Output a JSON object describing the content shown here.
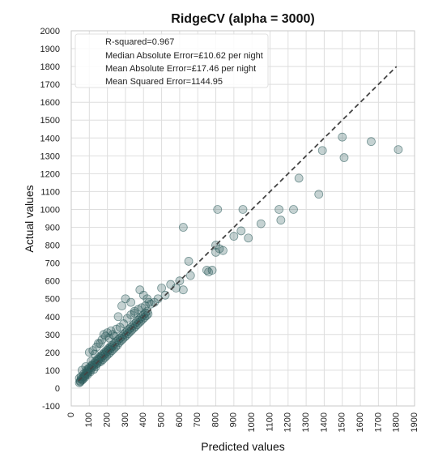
{
  "chart_data": {
    "type": "scatter",
    "title": "RidgeCV (alpha = 3000)",
    "xlabel": "Predicted values",
    "ylabel": "Actual values",
    "xlim": [
      0,
      1900
    ],
    "ylim": [
      -100,
      2000
    ],
    "xticks": [
      0,
      100,
      200,
      300,
      400,
      500,
      600,
      700,
      800,
      900,
      1000,
      1100,
      1200,
      1300,
      1400,
      1500,
      1600,
      1700,
      1800,
      1900
    ],
    "yticks": [
      -100,
      0,
      100,
      200,
      300,
      400,
      500,
      600,
      700,
      800,
      900,
      1000,
      1100,
      1200,
      1300,
      1400,
      1500,
      1600,
      1700,
      1800,
      1900,
      2000
    ],
    "grid": true,
    "annotation_placement": "top-left",
    "annotations": [
      "R-squared=0.967",
      "Median Absolute Error=£10.62 per night",
      "Mean Absolute Error=£17.46 per night",
      "Mean Squared Error=1144.95"
    ],
    "reference_line": {
      "style": "dashed",
      "from": [
        40,
        40
      ],
      "to": [
        1800,
        1800
      ]
    },
    "point_color": "#2f5e5e",
    "points": [
      [
        45,
        30
      ],
      [
        50,
        40
      ],
      [
        55,
        50
      ],
      [
        60,
        45
      ],
      [
        65,
        60
      ],
      [
        70,
        65
      ],
      [
        75,
        70
      ],
      [
        80,
        85
      ],
      [
        85,
        80
      ],
      [
        90,
        95
      ],
      [
        95,
        90
      ],
      [
        100,
        110
      ],
      [
        105,
        100
      ],
      [
        110,
        120
      ],
      [
        115,
        115
      ],
      [
        120,
        130
      ],
      [
        125,
        125
      ],
      [
        130,
        140
      ],
      [
        135,
        150
      ],
      [
        140,
        135
      ],
      [
        145,
        160
      ],
      [
        150,
        155
      ],
      [
        155,
        170
      ],
      [
        160,
        165
      ],
      [
        165,
        180
      ],
      [
        170,
        175
      ],
      [
        175,
        190
      ],
      [
        180,
        185
      ],
      [
        185,
        200
      ],
      [
        190,
        195
      ],
      [
        195,
        210
      ],
      [
        200,
        205
      ],
      [
        205,
        220
      ],
      [
        210,
        215
      ],
      [
        215,
        230
      ],
      [
        220,
        225
      ],
      [
        225,
        240
      ],
      [
        230,
        235
      ],
      [
        240,
        250
      ],
      [
        250,
        260
      ],
      [
        260,
        270
      ],
      [
        270,
        280
      ],
      [
        280,
        290
      ],
      [
        290,
        300
      ],
      [
        300,
        310
      ],
      [
        310,
        320
      ],
      [
        320,
        330
      ],
      [
        330,
        340
      ],
      [
        340,
        350
      ],
      [
        350,
        360
      ],
      [
        360,
        370
      ],
      [
        370,
        380
      ],
      [
        380,
        390
      ],
      [
        390,
        400
      ],
      [
        400,
        410
      ],
      [
        410,
        420
      ],
      [
        420,
        430
      ],
      [
        100,
        200
      ],
      [
        120,
        210
      ],
      [
        150,
        250
      ],
      [
        180,
        300
      ],
      [
        200,
        310
      ],
      [
        220,
        320
      ],
      [
        250,
        330
      ],
      [
        260,
        400
      ],
      [
        280,
        460
      ],
      [
        300,
        500
      ],
      [
        330,
        480
      ],
      [
        350,
        420
      ],
      [
        380,
        550
      ],
      [
        400,
        520
      ],
      [
        420,
        500
      ],
      [
        440,
        470
      ],
      [
        460,
        480
      ],
      [
        480,
        500
      ],
      [
        500,
        560
      ],
      [
        520,
        520
      ],
      [
        550,
        580
      ],
      [
        580,
        560
      ],
      [
        600,
        600
      ],
      [
        620,
        550
      ],
      [
        620,
        900
      ],
      [
        650,
        710
      ],
      [
        660,
        630
      ],
      [
        750,
        660
      ],
      [
        760,
        650
      ],
      [
        780,
        660
      ],
      [
        800,
        800
      ],
      [
        800,
        760
      ],
      [
        820,
        780
      ],
      [
        840,
        770
      ],
      [
        810,
        1000
      ],
      [
        950,
        1000
      ],
      [
        900,
        850
      ],
      [
        940,
        880
      ],
      [
        980,
        840
      ],
      [
        1050,
        920
      ],
      [
        1150,
        1000
      ],
      [
        1160,
        940
      ],
      [
        1230,
        1000
      ],
      [
        1260,
        1175
      ],
      [
        1370,
        1085
      ],
      [
        1390,
        1330
      ],
      [
        1500,
        1405
      ],
      [
        1510,
        1290
      ],
      [
        1660,
        1380
      ],
      [
        1810,
        1335
      ],
      [
        60,
        100
      ],
      [
        80,
        120
      ],
      [
        110,
        150
      ],
      [
        130,
        190
      ],
      [
        140,
        230
      ],
      [
        160,
        250
      ],
      [
        170,
        270
      ],
      [
        190,
        290
      ],
      [
        210,
        280
      ],
      [
        230,
        300
      ],
      [
        240,
        290
      ],
      [
        270,
        340
      ],
      [
        290,
        360
      ],
      [
        310,
        390
      ],
      [
        330,
        410
      ],
      [
        350,
        430
      ],
      [
        370,
        440
      ],
      [
        390,
        450
      ],
      [
        410,
        460
      ],
      [
        430,
        480
      ],
      [
        45,
        55
      ],
      [
        50,
        35
      ],
      [
        55,
        65
      ],
      [
        65,
        50
      ],
      [
        70,
        80
      ],
      [
        75,
        60
      ],
      [
        85,
        100
      ],
      [
        90,
        75
      ],
      [
        95,
        110
      ],
      [
        105,
        90
      ],
      [
        115,
        130
      ],
      [
        125,
        105
      ],
      [
        135,
        120
      ],
      [
        145,
        140
      ],
      [
        155,
        145
      ],
      [
        165,
        150
      ],
      [
        175,
        160
      ],
      [
        185,
        170
      ],
      [
        195,
        180
      ],
      [
        205,
        190
      ],
      [
        215,
        200
      ],
      [
        225,
        210
      ],
      [
        235,
        220
      ],
      [
        245,
        230
      ],
      [
        255,
        240
      ],
      [
        265,
        255
      ],
      [
        275,
        265
      ],
      [
        285,
        275
      ],
      [
        295,
        285
      ],
      [
        305,
        295
      ],
      [
        315,
        305
      ],
      [
        325,
        315
      ],
      [
        335,
        325
      ],
      [
        345,
        335
      ],
      [
        355,
        345
      ],
      [
        365,
        355
      ],
      [
        375,
        365
      ],
      [
        385,
        375
      ],
      [
        395,
        385
      ],
      [
        405,
        395
      ],
      [
        415,
        405
      ],
      [
        425,
        415
      ]
    ]
  }
}
